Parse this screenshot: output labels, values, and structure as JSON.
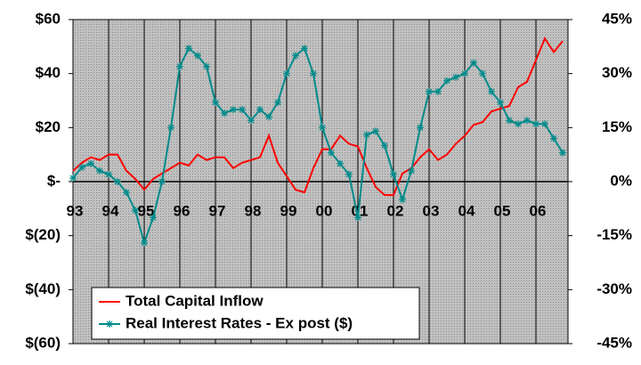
{
  "chart_data": {
    "type": "line",
    "x": [
      1993,
      1993.25,
      1993.5,
      1993.75,
      1994,
      1994.25,
      1994.5,
      1994.75,
      1995,
      1995.25,
      1995.5,
      1995.75,
      1996,
      1996.25,
      1996.5,
      1996.75,
      1997,
      1997.25,
      1997.5,
      1997.75,
      1998,
      1998.25,
      1998.5,
      1998.75,
      1999,
      1999.25,
      1999.5,
      1999.75,
      2000,
      2000.25,
      2000.5,
      2000.75,
      2001,
      2001.25,
      2001.5,
      2001.75,
      2002,
      2002.25,
      2002.5,
      2002.75,
      2003,
      2003.25,
      2003.5,
      2003.75,
      2004,
      2004.25,
      2004.5,
      2004.75,
      2005,
      2005.25,
      2005.5,
      2005.75,
      2006,
      2006.25,
      2006.5,
      2006.75
    ],
    "series": [
      {
        "name": "Total Capital Inflow",
        "color": "#ff0000",
        "values": [
          4,
          7,
          9,
          8,
          10,
          10,
          4,
          1,
          -3,
          1,
          3,
          5,
          7,
          6,
          10,
          8,
          9,
          9,
          5,
          7,
          8,
          9,
          17,
          7,
          2,
          -3,
          -4,
          5,
          12,
          12,
          17,
          14,
          13,
          5,
          -2,
          -5,
          -5,
          3,
          5,
          9,
          12,
          8,
          10,
          14,
          17,
          21,
          22,
          26,
          27,
          28,
          35,
          37,
          45,
          53,
          48,
          52
        ]
      },
      {
        "name": "Real Interest Rates - Ex post ($)",
        "color": "#008b8b",
        "axis": "y2",
        "values": [
          1,
          4,
          5,
          3,
          2,
          0,
          -3,
          -8,
          -17,
          -10,
          0,
          15,
          32,
          37,
          35,
          32,
          22,
          19,
          20,
          20,
          17,
          20,
          18,
          22,
          30,
          35,
          37,
          30,
          15,
          8,
          5,
          2,
          -10,
          13,
          14,
          10,
          2,
          -5,
          3,
          15,
          25,
          25,
          28,
          29,
          30,
          33,
          30,
          25,
          22,
          17,
          16,
          17,
          16,
          16,
          12,
          8
        ]
      }
    ],
    "xlim": [
      1993,
      2006.9
    ],
    "xticks": [
      {
        "value": 1993,
        "label": "93"
      },
      {
        "value": 1994,
        "label": "94"
      },
      {
        "value": 1995,
        "label": "95"
      },
      {
        "value": 1996,
        "label": "96"
      },
      {
        "value": 1997,
        "label": "97"
      },
      {
        "value": 1998,
        "label": "98"
      },
      {
        "value": 1999,
        "label": "99"
      },
      {
        "value": 2000,
        "label": "00"
      },
      {
        "value": 2001,
        "label": "01"
      },
      {
        "value": 2002,
        "label": "02"
      },
      {
        "value": 2003,
        "label": "03"
      },
      {
        "value": 2004,
        "label": "04"
      },
      {
        "value": 2005,
        "label": "05"
      },
      {
        "value": 2006,
        "label": "06"
      }
    ],
    "ylim": [
      -60,
      60
    ],
    "yticks": [
      {
        "value": 60,
        "label": "$60"
      },
      {
        "value": 40,
        "label": "$40"
      },
      {
        "value": 20,
        "label": "$20"
      },
      {
        "value": 0,
        "label": "$-"
      },
      {
        "value": -20,
        "label": "$(20)"
      },
      {
        "value": -40,
        "label": "$(40)"
      },
      {
        "value": -60,
        "label": "$(60)"
      }
    ],
    "y2lim": [
      -45,
      45
    ],
    "y2ticks": [
      {
        "value": 45,
        "label": "45%"
      },
      {
        "value": 30,
        "label": "30%"
      },
      {
        "value": 15,
        "label": "15%"
      },
      {
        "value": 0,
        "label": "0%"
      },
      {
        "value": -15,
        "label": "-15%"
      },
      {
        "value": -30,
        "label": "-30%"
      },
      {
        "value": -45,
        "label": "-45%"
      }
    ],
    "grid": true,
    "legend": "lower left"
  }
}
